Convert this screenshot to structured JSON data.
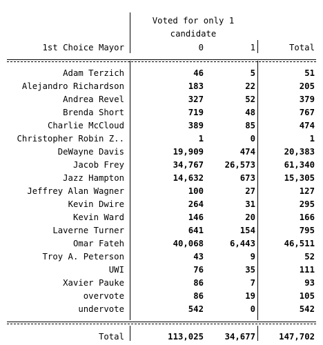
{
  "header": {
    "stub_label": "1st Choice Mayor",
    "group_line1": "Voted for only 1",
    "group_line2": "candidate",
    "col0": "0",
    "col1": "1",
    "total": "Total"
  },
  "rows": [
    {
      "label": "Adam Terzich",
      "v0": "46",
      "v1": "5",
      "total": "51"
    },
    {
      "label": "Alejandro Richardson",
      "v0": "183",
      "v1": "22",
      "total": "205"
    },
    {
      "label": "Andrea Revel",
      "v0": "327",
      "v1": "52",
      "total": "379"
    },
    {
      "label": "Brenda Short",
      "v0": "719",
      "v1": "48",
      "total": "767"
    },
    {
      "label": "Charlie McCloud",
      "v0": "389",
      "v1": "85",
      "total": "474"
    },
    {
      "label": "Christopher Robin Z..",
      "v0": "1",
      "v1": "0",
      "total": "1"
    },
    {
      "label": "DeWayne Davis",
      "v0": "19,909",
      "v1": "474",
      "total": "20,383"
    },
    {
      "label": "Jacob Frey",
      "v0": "34,767",
      "v1": "26,573",
      "total": "61,340"
    },
    {
      "label": "Jazz Hampton",
      "v0": "14,632",
      "v1": "673",
      "total": "15,305"
    },
    {
      "label": "Jeffrey Alan Wagner",
      "v0": "100",
      "v1": "27",
      "total": "127"
    },
    {
      "label": "Kevin Dwire",
      "v0": "264",
      "v1": "31",
      "total": "295"
    },
    {
      "label": "Kevin Ward",
      "v0": "146",
      "v1": "20",
      "total": "166"
    },
    {
      "label": "Laverne Turner",
      "v0": "641",
      "v1": "154",
      "total": "795"
    },
    {
      "label": "Omar Fateh",
      "v0": "40,068",
      "v1": "6,443",
      "total": "46,511"
    },
    {
      "label": "Troy A. Peterson",
      "v0": "43",
      "v1": "9",
      "total": "52"
    },
    {
      "label": "UWI",
      "v0": "76",
      "v1": "35",
      "total": "111"
    },
    {
      "label": "Xavier Pauke",
      "v0": "86",
      "v1": "7",
      "total": "93"
    },
    {
      "label": "overvote",
      "v0": "86",
      "v1": "19",
      "total": "105"
    },
    {
      "label": "undervote",
      "v0": "542",
      "v1": "0",
      "total": "542"
    }
  ],
  "totals": {
    "label": "Total",
    "v0": "113,025",
    "v1": "34,677",
    "total": "147,702"
  }
}
